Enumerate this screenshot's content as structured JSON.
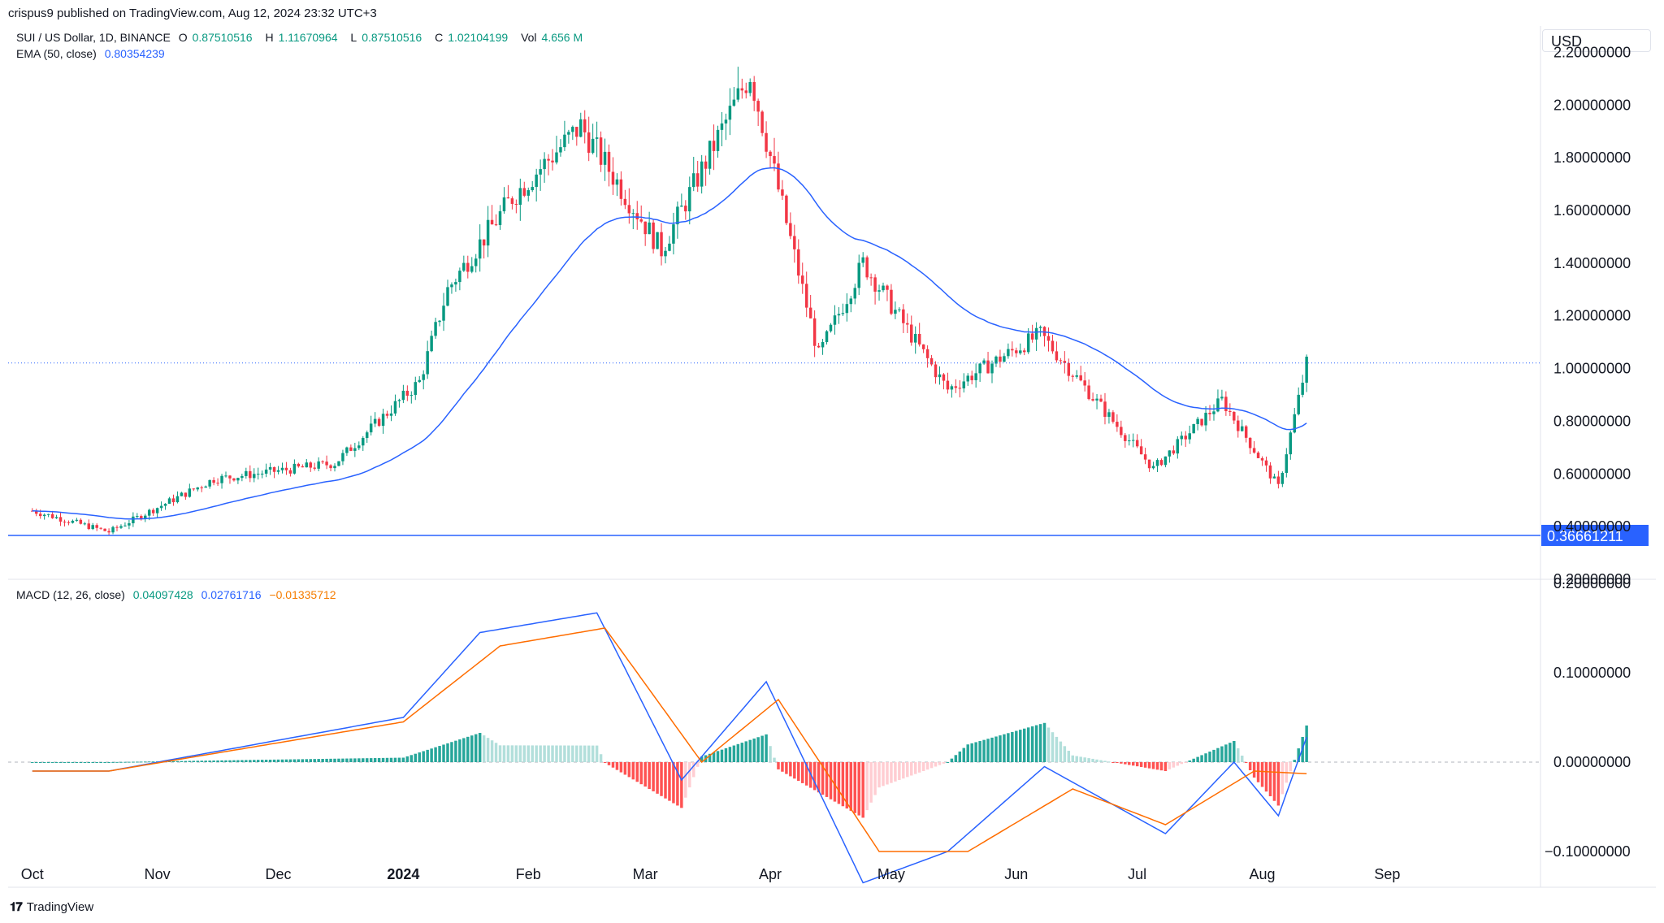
{
  "publisher": "crispus9 published on TradingView.com, Aug 12, 2024 23:32 UTC+3",
  "currency": "USD",
  "footer": {
    "logo_icon": "tradingview-logo-icon",
    "brand": "TradingView"
  },
  "legend": {
    "symbol": "SUI / US Dollar, 1D, BINANCE",
    "open_label": "O",
    "open": "0.87510516",
    "high_label": "H",
    "high": "1.11670964",
    "low_label": "L",
    "low": "0.87510516",
    "close_label": "C",
    "close": "1.02104199",
    "vol_label": "Vol",
    "vol": "4.656 M",
    "ema_label": "EMA (50, close)",
    "ema_value": "0.80354239",
    "macd_label": "MACD (12, 26, close)",
    "macd_hist": "0.04097428",
    "macd_line": "0.02761716",
    "macd_signal": "−0.01335712"
  },
  "colors": {
    "up": "#089981",
    "down": "#f23645",
    "ema": "#2962ff",
    "macd": "#2962ff",
    "signal": "#ff6d00",
    "hist_up_strong": "#26a69a",
    "hist_up_weak": "#b2dfdb",
    "hist_down_strong": "#ff5252",
    "hist_down_weak": "#ffcdd2",
    "hline": "#2962ff"
  },
  "chart_data": [
    {
      "type": "candlestick",
      "title": "SUI / US Dollar, 1D, BINANCE",
      "ylim": [
        0.2,
        2.3
      ],
      "y_ticks": [
        "2.20000000",
        "2.00000000",
        "1.80000000",
        "1.60000000",
        "1.40000000",
        "1.20000000",
        "1.00000000",
        "0.80000000",
        "0.60000000",
        "0.40000000",
        "0.20000000"
      ],
      "x_ticks": [
        "Oct",
        "Nov",
        "Dec",
        "2024",
        "Feb",
        "Mar",
        "Apr",
        "May",
        "Jun",
        "Jul",
        "Aug",
        "Sep"
      ],
      "horizontal_line": {
        "value": 0.36661211,
        "label": "0.36661211"
      },
      "last_price_line": 1.02104199,
      "key_points": [
        {
          "date": "2023-10-01",
          "close": 0.46
        },
        {
          "date": "2023-10-20",
          "close": 0.38
        },
        {
          "date": "2023-11-15",
          "close": 0.58
        },
        {
          "date": "2023-12-15",
          "close": 0.64
        },
        {
          "date": "2024-01-05",
          "close": 0.95
        },
        {
          "date": "2024-01-12",
          "close": 1.3
        },
        {
          "date": "2024-01-28",
          "close": 1.65
        },
        {
          "date": "2024-02-14",
          "close": 1.92
        },
        {
          "date": "2024-03-05",
          "close": 1.45
        },
        {
          "date": "2024-03-27",
          "close": 2.12
        },
        {
          "date": "2024-04-13",
          "close": 1.05
        },
        {
          "date": "2024-04-24",
          "close": 1.4
        },
        {
          "date": "2024-05-15",
          "close": 0.92
        },
        {
          "date": "2024-06-07",
          "close": 1.13
        },
        {
          "date": "2024-06-25",
          "close": 0.8
        },
        {
          "date": "2024-07-05",
          "close": 0.62
        },
        {
          "date": "2024-07-22",
          "close": 0.88
        },
        {
          "date": "2024-08-05",
          "close": 0.55
        },
        {
          "date": "2024-08-12",
          "close": 1.02
        }
      ]
    },
    {
      "type": "line",
      "title": "MACD (12, 26, close)",
      "ylim": [
        -0.14,
        0.2
      ],
      "y_ticks": [
        "0.20000000",
        "0.10000000",
        "0.00000000",
        "−0.10000000"
      ],
      "series": [
        {
          "name": "MACD",
          "key_points": [
            {
              "date": "2023-10-20",
              "v": -0.01
            },
            {
              "date": "2024-01-01",
              "v": 0.05
            },
            {
              "date": "2024-01-20",
              "v": 0.145
            },
            {
              "date": "2024-02-18",
              "v": 0.167
            },
            {
              "date": "2024-03-10",
              "v": -0.02
            },
            {
              "date": "2024-03-31",
              "v": 0.09
            },
            {
              "date": "2024-04-24",
              "v": -0.135
            },
            {
              "date": "2024-05-15",
              "v": -0.1
            },
            {
              "date": "2024-06-08",
              "v": -0.005
            },
            {
              "date": "2024-07-08",
              "v": -0.08
            },
            {
              "date": "2024-07-25",
              "v": 0.0
            },
            {
              "date": "2024-08-05",
              "v": -0.06
            },
            {
              "date": "2024-08-12",
              "v": 0.028
            }
          ]
        },
        {
          "name": "Signal",
          "key_points": [
            {
              "date": "2023-10-20",
              "v": -0.01
            },
            {
              "date": "2024-01-01",
              "v": 0.045
            },
            {
              "date": "2024-01-25",
              "v": 0.13
            },
            {
              "date": "2024-02-20",
              "v": 0.15
            },
            {
              "date": "2024-03-15",
              "v": 0.0
            },
            {
              "date": "2024-04-03",
              "v": 0.07
            },
            {
              "date": "2024-04-28",
              "v": -0.1
            },
            {
              "date": "2024-05-20",
              "v": -0.1
            },
            {
              "date": "2024-06-15",
              "v": -0.03
            },
            {
              "date": "2024-07-08",
              "v": -0.07
            },
            {
              "date": "2024-07-30",
              "v": -0.01
            },
            {
              "date": "2024-08-12",
              "v": -0.013
            }
          ]
        }
      ]
    }
  ]
}
